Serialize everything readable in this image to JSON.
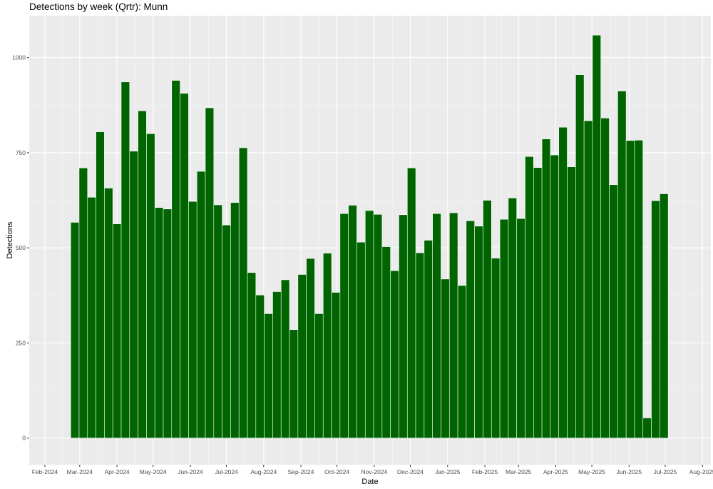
{
  "chart_data": {
    "type": "bar",
    "title": "Detections by week (Qrtr): Munn",
    "xlabel": "Date",
    "ylabel": "Detections",
    "ylim": [
      -70,
      1110
    ],
    "xlim": [
      "2024-01-19",
      "2025-08-08"
    ],
    "yticks": [
      0,
      250,
      500,
      750,
      1000
    ],
    "xticks": [
      {
        "date": "2024-02-01",
        "label": "Feb-2024"
      },
      {
        "date": "2024-03-01",
        "label": "Mar-2024"
      },
      {
        "date": "2024-04-01",
        "label": "Apr-2024"
      },
      {
        "date": "2024-05-01",
        "label": "May-2024"
      },
      {
        "date": "2024-06-01",
        "label": "Jun-2024"
      },
      {
        "date": "2024-07-01",
        "label": "Jul-2024"
      },
      {
        "date": "2024-08-01",
        "label": "Aug-2024"
      },
      {
        "date": "2024-09-01",
        "label": "Sep-2024"
      },
      {
        "date": "2024-10-01",
        "label": "Oct-2024"
      },
      {
        "date": "2024-11-01",
        "label": "Nov-2024"
      },
      {
        "date": "2024-12-01",
        "label": "Dec-2024"
      },
      {
        "date": "2025-01-01",
        "label": "Jan-2025"
      },
      {
        "date": "2025-02-01",
        "label": "Feb-2025"
      },
      {
        "date": "2025-03-01",
        "label": "Mar-2025"
      },
      {
        "date": "2025-04-01",
        "label": "Apr-2025"
      },
      {
        "date": "2025-05-01",
        "label": "May-2025"
      },
      {
        "date": "2025-06-01",
        "label": "Jun-2025"
      },
      {
        "date": "2025-07-01",
        "label": "Jul-2025"
      },
      {
        "date": "2025-08-01",
        "label": "Aug-2025"
      }
    ],
    "bar_color": "#006400",
    "panel_bg": "#ebebeb",
    "grid": true,
    "x": [
      "2024-02-26",
      "2024-03-04",
      "2024-03-11",
      "2024-03-18",
      "2024-03-25",
      "2024-04-01",
      "2024-04-08",
      "2024-04-15",
      "2024-04-22",
      "2024-04-29",
      "2024-05-06",
      "2024-05-13",
      "2024-05-20",
      "2024-05-27",
      "2024-06-03",
      "2024-06-10",
      "2024-06-17",
      "2024-06-24",
      "2024-07-01",
      "2024-07-08",
      "2024-07-15",
      "2024-07-22",
      "2024-07-29",
      "2024-08-05",
      "2024-08-12",
      "2024-08-19",
      "2024-08-26",
      "2024-09-02",
      "2024-09-09",
      "2024-09-16",
      "2024-09-23",
      "2024-09-30",
      "2024-10-07",
      "2024-10-14",
      "2024-10-21",
      "2024-10-28",
      "2024-11-04",
      "2024-11-11",
      "2024-11-18",
      "2024-11-25",
      "2024-12-02",
      "2024-12-09",
      "2024-12-16",
      "2024-12-23",
      "2024-12-30",
      "2025-01-06",
      "2025-01-13",
      "2025-01-20",
      "2025-01-27",
      "2025-02-03",
      "2025-02-10",
      "2025-02-17",
      "2025-02-24",
      "2025-03-03",
      "2025-03-10",
      "2025-03-17",
      "2025-03-24",
      "2025-03-31",
      "2025-04-07",
      "2025-04-14",
      "2025-04-21",
      "2025-04-28",
      "2025-05-05",
      "2025-05-12",
      "2025-05-19",
      "2025-05-26",
      "2025-06-02",
      "2025-06-09",
      "2025-06-16",
      "2025-06-23",
      "2025-06-30"
    ],
    "values": [
      567,
      710,
      633,
      805,
      657,
      563,
      936,
      754,
      860,
      800,
      606,
      602,
      940,
      906,
      622,
      701,
      868,
      613,
      560,
      619,
      763,
      435,
      376,
      327,
      385,
      416,
      285,
      430,
      472,
      327,
      486,
      383,
      590,
      612,
      515,
      598,
      588,
      503,
      440,
      587,
      710,
      487,
      520,
      590,
      418,
      592,
      401,
      571,
      557,
      625,
      473,
      575,
      631,
      577,
      740,
      711,
      786,
      744,
      817,
      713,
      955,
      834,
      1059,
      841,
      666,
      912,
      782,
      783,
      53,
      624,
      642
    ]
  }
}
